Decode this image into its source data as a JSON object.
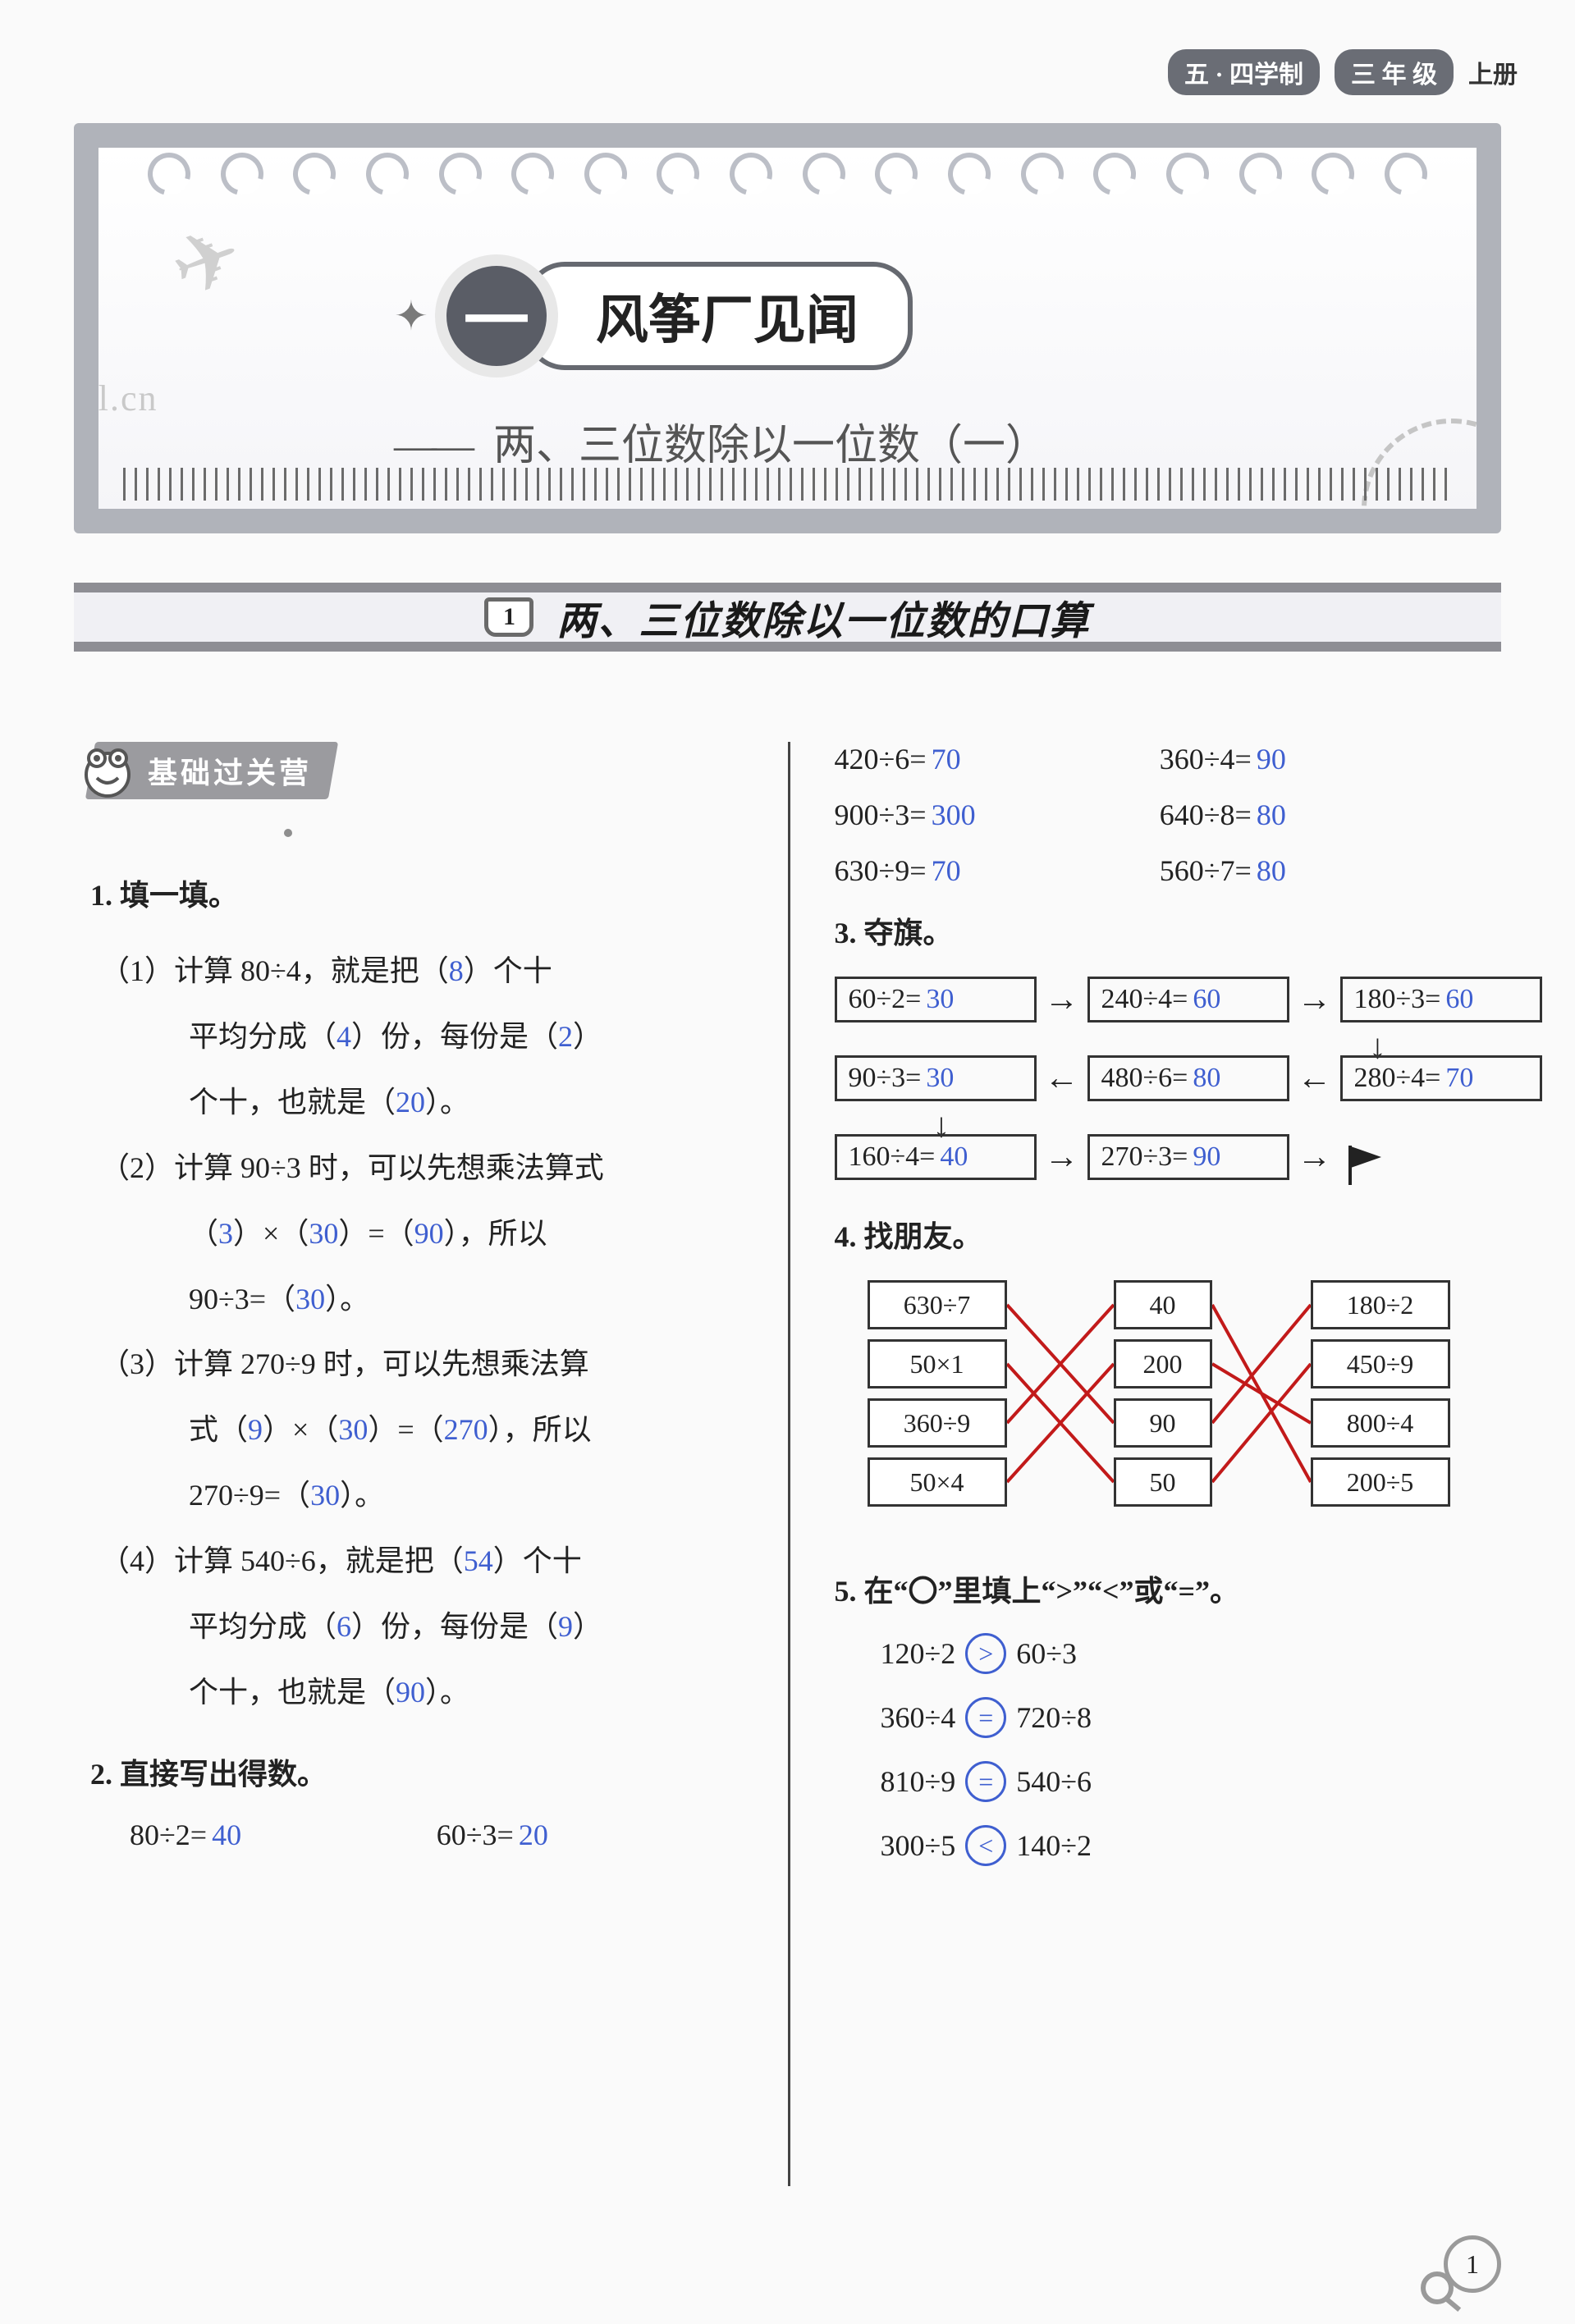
{
  "header": {
    "badge": "五 · 四学制",
    "grade": "三 年 级",
    "volume": "上册"
  },
  "hero": {
    "chapter_num": "一",
    "title": "风筝厂见闻",
    "subtitle_dash": "——",
    "subtitle": "两、三位数除以一位数（一）",
    "watermark": "zyjl.cn"
  },
  "banner": {
    "num": "1",
    "title": "两、三位数除以一位数的口算"
  },
  "chip": {
    "label": "基础过关营"
  },
  "q1": {
    "head": "1. 填一填。",
    "p1": {
      "a": "（1）计算 80÷4，就是把（",
      "b1": "8",
      "c": "）个十",
      "d": "平均分成（",
      "b2": "4",
      "e": "）份，每份是（",
      "b3": "2",
      "f": "）",
      "g": "个十，也就是（",
      "b4": "20",
      "h": "）。"
    },
    "p2": {
      "a": "（2）计算 90÷3 时，可以先想乘法算式",
      "b": "（",
      "b1": "3",
      "c": "）×（",
      "b2": "30",
      "d": "）=（",
      "b3": "90",
      "e": "），所以",
      "f": "90÷3=（",
      "b4": "30",
      "g": "）。"
    },
    "p3": {
      "a": "（3）计算 270÷9 时，可以先想乘法算",
      "b": "式（",
      "b1": "9",
      "c": "）×（",
      "b2": "30",
      "d": "）=（",
      "b3": "270",
      "e": "），所以",
      "f": "270÷9=（",
      "b4": "30",
      "g": "）。"
    },
    "p4": {
      "a": "（4）计算 540÷6，就是把（",
      "b1": "54",
      "c": "）个十",
      "d": "平均分成（",
      "b2": "6",
      "e": "）份，每份是（",
      "b3": "9",
      "f": "）",
      "g": "个十，也就是（",
      "b4": "90",
      "h": "）。"
    }
  },
  "q2": {
    "head": "2. 直接写出得数。",
    "left": [
      {
        "lhs": "80÷2=",
        "ans": "40"
      }
    ],
    "right": [
      {
        "lhs": "60÷3=",
        "ans": "20"
      }
    ],
    "rcol": [
      {
        "lhs": "420÷6=",
        "ans": "70",
        "lhs2": "360÷4=",
        "ans2": "90"
      },
      {
        "lhs": "900÷3=",
        "ans": "300",
        "lhs2": "640÷8=",
        "ans2": "80"
      },
      {
        "lhs": "630÷9=",
        "ans": "70",
        "lhs2": "560÷7=",
        "ans2": "80"
      }
    ]
  },
  "q3": {
    "head": "3. 夺旗。",
    "r0": [
      {
        "lhs": "60÷2=",
        "ans": "30"
      },
      {
        "lhs": "240÷4=",
        "ans": "60"
      },
      {
        "lhs": "180÷3=",
        "ans": "60"
      }
    ],
    "r1": [
      {
        "lhs": "90÷3=",
        "ans": "30"
      },
      {
        "lhs": "480÷6=",
        "ans": "80"
      },
      {
        "lhs": "280÷4=",
        "ans": "70"
      }
    ],
    "r2": [
      {
        "lhs": "160÷4=",
        "ans": "40"
      },
      {
        "lhs": "270÷3=",
        "ans": "90"
      }
    ],
    "arrows": {
      "right": "→",
      "left": "←",
      "down": "↓"
    }
  },
  "q4": {
    "head": "4. 找朋友。",
    "left": [
      "630÷7",
      "50×1",
      "360÷9",
      "50×4"
    ],
    "mid": [
      "40",
      "200",
      "90",
      "50"
    ],
    "right": [
      "180÷2",
      "450÷9",
      "800÷4",
      "200÷5"
    ],
    "edges_left_mid": [
      [
        0,
        2
      ],
      [
        1,
        3
      ],
      [
        2,
        0
      ],
      [
        3,
        1
      ]
    ],
    "edges_mid_right": [
      [
        0,
        3
      ],
      [
        1,
        2
      ],
      [
        2,
        0
      ],
      [
        3,
        1
      ]
    ],
    "edge_color": "#c21a1a"
  },
  "q5": {
    "head": "5. 在“〇”里填上“>”“<”或“=”。",
    "lines": [
      {
        "l": "120÷2",
        "op": ">",
        "r": "60÷3"
      },
      {
        "l": "360÷4",
        "op": "=",
        "r": "720÷8"
      },
      {
        "l": "810÷9",
        "op": "=",
        "r": "540÷6"
      },
      {
        "l": "300÷5",
        "op": "<",
        "r": "140÷2"
      }
    ]
  },
  "page_number": "1"
}
